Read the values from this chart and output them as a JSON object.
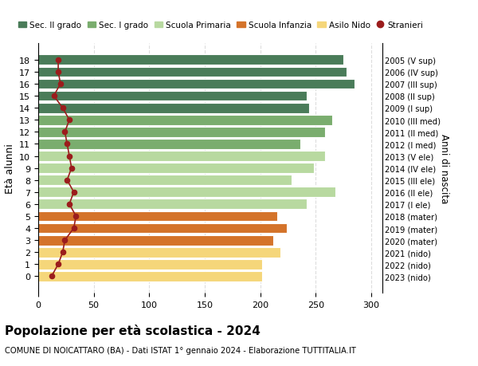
{
  "ages": [
    18,
    17,
    16,
    15,
    14,
    13,
    12,
    11,
    10,
    9,
    8,
    7,
    6,
    5,
    4,
    3,
    2,
    1,
    0
  ],
  "right_labels": [
    "2005 (V sup)",
    "2006 (IV sup)",
    "2007 (III sup)",
    "2008 (II sup)",
    "2009 (I sup)",
    "2010 (III med)",
    "2011 (II med)",
    "2012 (I med)",
    "2013 (V ele)",
    "2014 (IV ele)",
    "2015 (III ele)",
    "2016 (II ele)",
    "2017 (I ele)",
    "2018 (mater)",
    "2019 (mater)",
    "2020 (mater)",
    "2021 (nido)",
    "2022 (nido)",
    "2023 (nido)"
  ],
  "bar_values": [
    275,
    278,
    285,
    242,
    244,
    265,
    258,
    236,
    258,
    248,
    228,
    268,
    242,
    215,
    224,
    212,
    218,
    202,
    202
  ],
  "bar_colors": [
    "#4a7c59",
    "#4a7c59",
    "#4a7c59",
    "#4a7c59",
    "#4a7c59",
    "#7aad6e",
    "#7aad6e",
    "#7aad6e",
    "#b8d9a0",
    "#b8d9a0",
    "#b8d9a0",
    "#b8d9a0",
    "#b8d9a0",
    "#d4732a",
    "#d4732a",
    "#d4732a",
    "#f5d67a",
    "#f5d67a",
    "#f5d67a"
  ],
  "stranieri_values": [
    18,
    18,
    20,
    14,
    22,
    28,
    24,
    26,
    28,
    30,
    26,
    32,
    28,
    34,
    32,
    24,
    22,
    18,
    12
  ],
  "legend_labels": [
    "Sec. II grado",
    "Sec. I grado",
    "Scuola Primaria",
    "Scuola Infanzia",
    "Asilo Nido",
    "Stranieri"
  ],
  "legend_colors": [
    "#4a7c59",
    "#7aad6e",
    "#b8d9a0",
    "#d4732a",
    "#f5d67a",
    "#9b1c1c"
  ],
  "ylabel_left": "Età alunni",
  "ylabel_right": "Anni di nascita",
  "title": "Popolazione per età scolastica - 2024",
  "subtitle": "COMUNE DI NOICATTARO (BA) - Dati ISTAT 1° gennaio 2024 - Elaborazione TUTTITALIA.IT",
  "xlim": [
    0,
    310
  ],
  "xticks": [
    0,
    50,
    100,
    150,
    200,
    250,
    300
  ],
  "background_color": "#ffffff",
  "grid_color": "#dddddd"
}
